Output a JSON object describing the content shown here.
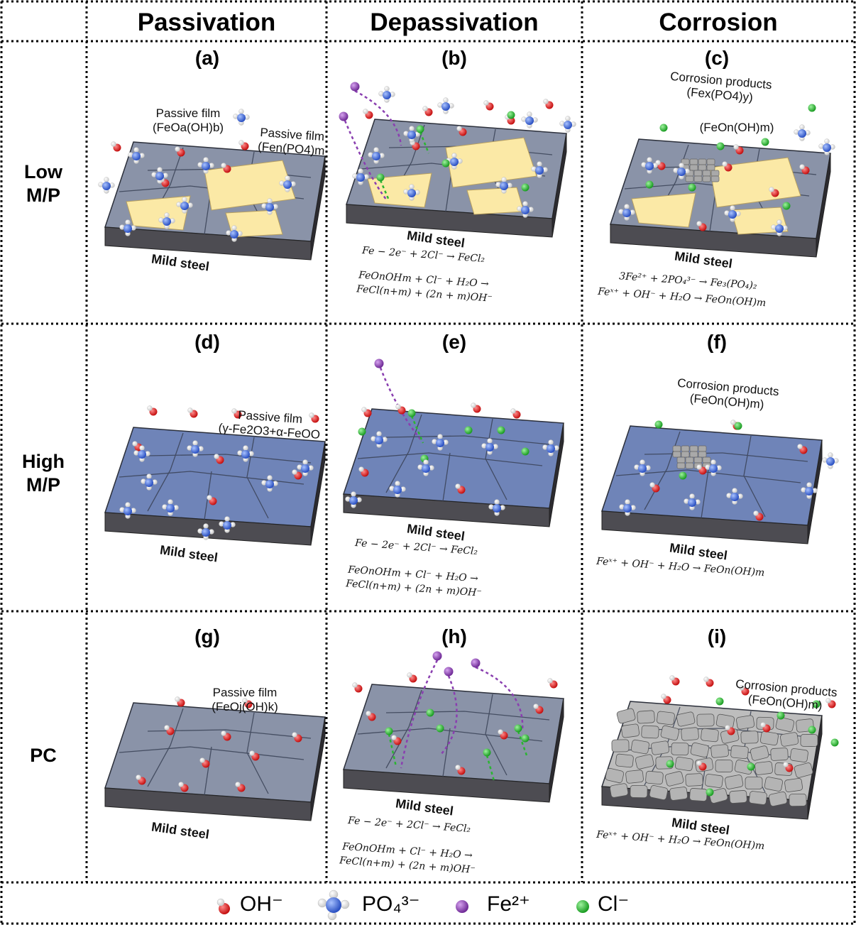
{
  "headers": {
    "passivation": "Passivation",
    "depassivation": "Depassivation",
    "corrosion": "Corrosion"
  },
  "rows": {
    "low_l1": "Low",
    "low_l2": "M/P",
    "high_l1": "High",
    "high_l2": "M/P",
    "pc": "PC"
  },
  "panels": {
    "a": "(a)",
    "b": "(b)",
    "c": "(c)",
    "d": "(d)",
    "e": "(e)",
    "f": "(f)",
    "g": "(g)",
    "h": "(h)",
    "i": "(i)"
  },
  "substrate": "Mild steel",
  "annotations": {
    "a1_l1": "Passive film",
    "a1_l2": "(FeOa(OH)b)",
    "a2_l1": "Passive film",
    "a2_l2": "(Fen(PO4)m",
    "c1_l1": "Corrosion products",
    "c1_l2": "(Fex(PO4)y)",
    "c2": "(FeOn(OH)m)",
    "d1_l1": "Passive film",
    "d1_l2": "(γ-Fe2O3+α-FeOO",
    "f1_l1": "Corrosion products",
    "f1_l2": "(FeOn(OH)m)",
    "g1_l1": "Passive film",
    "g1_l2": "(FeOj(OH)k)",
    "i1_l1": "Corrosion products",
    "i1_l2": "(FeOn(OH)m)"
  },
  "equations": {
    "dep1": "Fe − 2e⁻ + 2Cl⁻ → FeCl₂",
    "dep2": "FeOnOHm + Cl⁻ + H₂O →",
    "dep3": "FeCl(n+m) + (2n + m)OH⁻",
    "c_eq1": "3Fe²⁺ + 2PO₄³⁻ → Fe₃(PO₄)₂",
    "c_eq2": "Feˣ⁺ + OH⁻ + H₂O → FeOn(OH)m",
    "cor_eq": "Feˣ⁺ + OH⁻ + H₂O → FeOn(OH)m"
  },
  "legend": {
    "oh": "OH⁻",
    "po4": "PO₄³⁻",
    "fe": "Fe²⁺",
    "cl": "Cl⁻"
  },
  "colors": {
    "steel_top": "#7d8494",
    "steel_side": "#4d4c52",
    "grain_gray": "#8a93a8",
    "grain_blue": "#6f84b8",
    "film_yellow": "#fbe9a6",
    "oh": "#d61f1f",
    "po4": "#3d66d6",
    "fe": "#8a3fb0",
    "cl": "#2bb532",
    "product": "#a9a9a9"
  }
}
